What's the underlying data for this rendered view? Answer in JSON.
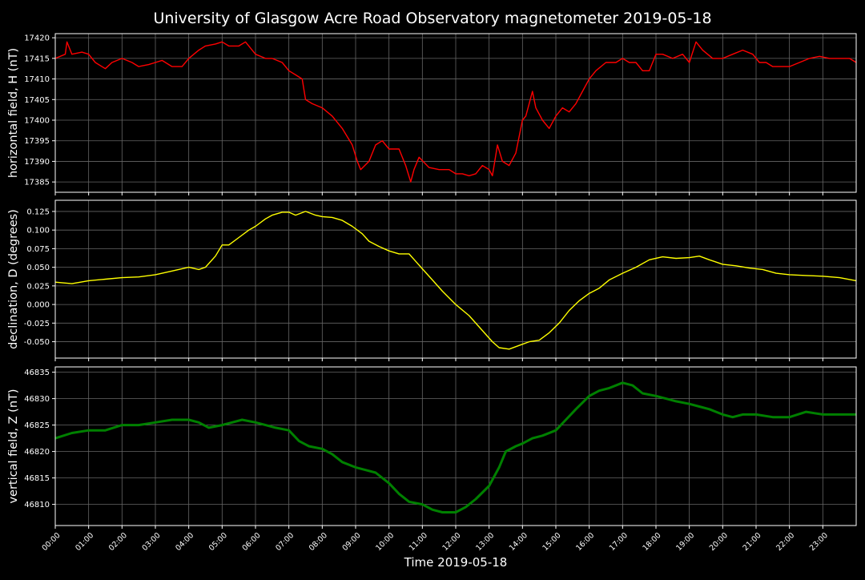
{
  "title": "University of Glasgow Acre Road Observatory magnetometer 2019-05-18",
  "xlabel": "Time 2019-05-18",
  "colors": {
    "background": "#000000",
    "axes": "#ffffff",
    "grid": "#666666",
    "H": "#ff0000",
    "D": "#ffff00",
    "Z": "#008000"
  },
  "chart_data": [
    {
      "type": "line",
      "ylabel": "horizontal field, H (nT)",
      "ylim": [
        17382.5,
        17421
      ],
      "yticks": [
        17385,
        17390,
        17395,
        17400,
        17405,
        17410,
        17415,
        17420
      ],
      "xlim": [
        0,
        24
      ],
      "xticks": [
        "00:00",
        "01:00",
        "02:00",
        "03:00",
        "04:00",
        "05:00",
        "06:00",
        "07:00",
        "08:00",
        "09:00",
        "10:00",
        "11:00",
        "12:00",
        "13:00",
        "14:00",
        "15:00",
        "16:00",
        "17:00",
        "18:00",
        "19:00",
        "20:00",
        "21:00",
        "22:00",
        "23:00"
      ],
      "grid": true,
      "series": [
        {
          "color": "#ff0000",
          "x": [
            0,
            0.3,
            0.35,
            0.5,
            0.8,
            1,
            1.2,
            1.5,
            1.7,
            2,
            2.3,
            2.5,
            2.8,
            3,
            3.2,
            3.5,
            3.8,
            4,
            4.3,
            4.5,
            4.8,
            5,
            5.2,
            5.5,
            5.7,
            6,
            6.3,
            6.5,
            6.8,
            7,
            7.2,
            7.4,
            7.5,
            7.7,
            8,
            8.3,
            8.6,
            8.9,
            9.05,
            9.15,
            9.4,
            9.6,
            9.8,
            10,
            10.3,
            10.5,
            10.65,
            10.75,
            10.9,
            11.2,
            11.5,
            11.8,
            12,
            12.2,
            12.4,
            12.6,
            12.8,
            13,
            13.1,
            13.25,
            13.4,
            13.6,
            13.8,
            14,
            14.1,
            14.2,
            14.3,
            14.4,
            14.6,
            14.8,
            15,
            15.2,
            15.4,
            15.6,
            15.8,
            16,
            16.2,
            16.5,
            16.8,
            17,
            17.2,
            17.4,
            17.6,
            17.8,
            18,
            18.2,
            18.5,
            18.8,
            19,
            19.2,
            19.4,
            19.7,
            20,
            20.3,
            20.6,
            20.9,
            21.1,
            21.3,
            21.5,
            21.8,
            22,
            22.3,
            22.6,
            22.9,
            23.2,
            23.5,
            23.8,
            24
          ],
          "values": [
            17415,
            17416,
            17419,
            17416,
            17416.5,
            17416,
            17414,
            17412.5,
            17414,
            17415,
            17414,
            17413,
            17413.5,
            17414,
            17414.5,
            17413,
            17413,
            17415,
            17417,
            17418,
            17418.5,
            17419,
            17418,
            17418,
            17419,
            17416,
            17415,
            17415,
            17414,
            17412,
            17411,
            17410,
            17405,
            17404,
            17403,
            17401,
            17398,
            17394,
            17390,
            17388,
            17390,
            17394,
            17395,
            17393,
            17393,
            17389,
            17385,
            17388,
            17391,
            17388.5,
            17388,
            17388,
            17387,
            17387,
            17386.5,
            17387,
            17389,
            17388,
            17386.5,
            17394,
            17390,
            17389,
            17392,
            17400,
            17401,
            17404,
            17407,
            17403,
            17400,
            17398,
            17401,
            17403,
            17402,
            17404,
            17407,
            17410,
            17412,
            17414,
            17414,
            17415,
            17414,
            17414,
            17412,
            17412,
            17416,
            17416,
            17415,
            17416,
            17414,
            17419,
            17417,
            17415,
            17415,
            17416,
            17417,
            17416,
            17414,
            17414,
            17413,
            17413,
            17413,
            17414,
            17415,
            17415.5,
            17415,
            17415,
            17415,
            17414
          ]
        }
      ]
    },
    {
      "type": "line",
      "ylabel": "declination, D (degrees)",
      "ylim": [
        -0.072,
        0.14
      ],
      "yticks": [
        -0.05,
        -0.025,
        0.0,
        0.025,
        0.05,
        0.075,
        0.1,
        0.125
      ],
      "xlim": [
        0,
        24
      ],
      "grid": true,
      "series": [
        {
          "color": "#ffff00",
          "x": [
            0,
            0.5,
            1,
            1.5,
            2,
            2.5,
            3,
            3.5,
            4,
            4.3,
            4.5,
            4.8,
            5,
            5.2,
            5.5,
            5.8,
            6,
            6.3,
            6.5,
            6.8,
            7,
            7.2,
            7.5,
            7.8,
            8,
            8.3,
            8.6,
            8.9,
            9.2,
            9.4,
            9.7,
            10,
            10.3,
            10.6,
            10.8,
            11,
            11.3,
            11.6,
            12,
            12.4,
            12.8,
            13.1,
            13.3,
            13.6,
            13.9,
            14.2,
            14.5,
            14.8,
            15.1,
            15.4,
            15.7,
            16,
            16.3,
            16.6,
            17,
            17.4,
            17.8,
            18.2,
            18.6,
            19,
            19.3,
            19.6,
            20,
            20.4,
            20.8,
            21.2,
            21.6,
            22,
            22.5,
            23,
            23.5,
            24
          ],
          "values": [
            0.03,
            0.028,
            0.032,
            0.034,
            0.036,
            0.037,
            0.04,
            0.045,
            0.05,
            0.047,
            0.05,
            0.065,
            0.08,
            0.08,
            0.09,
            0.1,
            0.105,
            0.115,
            0.12,
            0.124,
            0.124,
            0.12,
            0.125,
            0.12,
            0.118,
            0.117,
            0.113,
            0.105,
            0.095,
            0.085,
            0.078,
            0.072,
            0.068,
            0.068,
            0.058,
            0.048,
            0.033,
            0.018,
            0.0,
            -0.015,
            -0.035,
            -0.05,
            -0.058,
            -0.06,
            -0.055,
            -0.05,
            -0.048,
            -0.038,
            -0.025,
            -0.008,
            0.005,
            0.015,
            0.022,
            0.033,
            0.042,
            0.05,
            0.06,
            0.064,
            0.062,
            0.063,
            0.065,
            0.06,
            0.054,
            0.052,
            0.049,
            0.047,
            0.042,
            0.04,
            0.039,
            0.038,
            0.036,
            0.032
          ]
        }
      ]
    },
    {
      "type": "line",
      "ylabel": "vertical field, Z (nT)",
      "ylim": [
        46806,
        46836
      ],
      "yticks": [
        46810,
        46815,
        46820,
        46825,
        46830,
        46835
      ],
      "xlim": [
        0,
        24
      ],
      "grid": true,
      "series": [
        {
          "color": "#008000",
          "x": [
            0,
            0.5,
            1,
            1.5,
            2,
            2.5,
            3,
            3.5,
            4,
            4.3,
            4.6,
            5,
            5.3,
            5.6,
            6,
            6.3,
            6.6,
            7,
            7.3,
            7.6,
            8,
            8.3,
            8.6,
            9,
            9.3,
            9.6,
            10,
            10.3,
            10.6,
            11,
            11.3,
            11.6,
            12,
            12.3,
            12.6,
            13,
            13.3,
            13.5,
            13.8,
            14,
            14.3,
            14.6,
            15,
            15.3,
            15.6,
            16,
            16.3,
            16.6,
            17,
            17.3,
            17.6,
            18,
            18.3,
            18.6,
            19,
            19.3,
            19.6,
            20,
            20.3,
            20.6,
            21,
            21.5,
            22,
            22.5,
            23,
            23.5,
            24
          ],
          "values": [
            46822.5,
            46823.5,
            46824,
            46824,
            46825,
            46825,
            46825.5,
            46826,
            46826,
            46825.5,
            46824.5,
            46825,
            46825.5,
            46826,
            46825.5,
            46825,
            46824.5,
            46824,
            46822,
            46821,
            46820.5,
            46819.5,
            46818,
            46817,
            46816.5,
            46816,
            46814,
            46812,
            46810.5,
            46810,
            46809,
            46808.5,
            46808.5,
            46809.5,
            46811,
            46813.5,
            46817,
            46820,
            46821,
            46821.5,
            46822.5,
            46823,
            46824,
            46826,
            46828,
            46830.5,
            46831.5,
            46832,
            46833,
            46832.5,
            46831,
            46830.5,
            46830,
            46829.5,
            46829,
            46828.5,
            46828,
            46827,
            46826.5,
            46827,
            46827,
            46826.5,
            46826.5,
            46827.5,
            46827,
            46827,
            46827
          ]
        }
      ]
    }
  ]
}
